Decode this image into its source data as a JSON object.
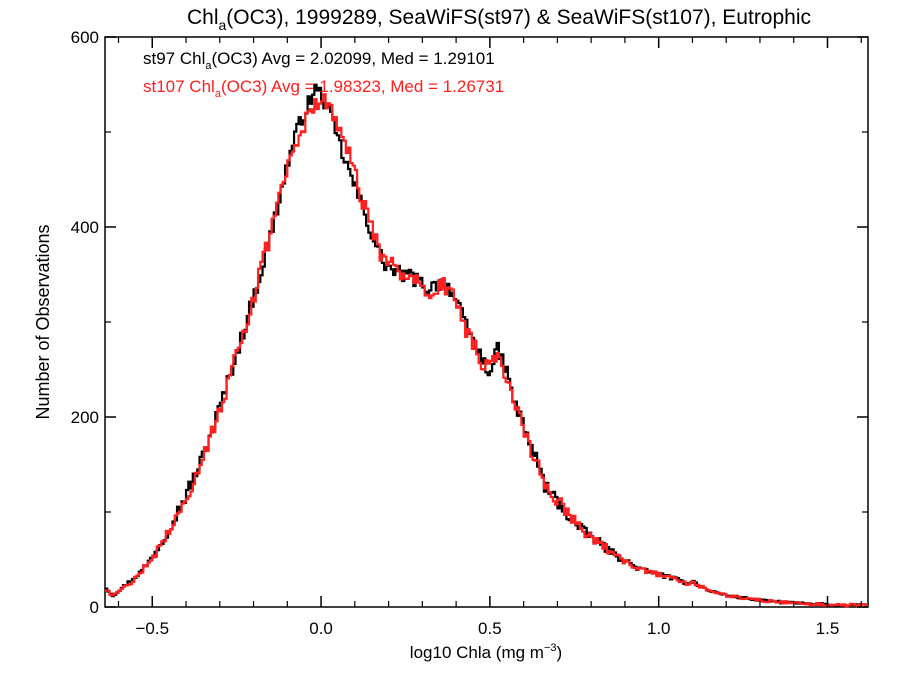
{
  "chart_data": {
    "type": "histogram",
    "title": {
      "prefix": "Chl",
      "subscript": "a",
      "suffix": "(OC3), 1999289, SeaWiFS(st97) & SeaWiFS(st107), Eutrophic"
    },
    "xlabel": {
      "main": "log10 Chla (mg m",
      "superscript": "−3",
      "end": ")"
    },
    "ylabel": "Number of Observations",
    "xlim": [
      -0.64,
      1.62
    ],
    "ylim": [
      0,
      600
    ],
    "xticks": [
      -0.5,
      0.0,
      0.5,
      1.0,
      1.5
    ],
    "xtick_labels": [
      "−0.5",
      "0.0",
      "0.5",
      "1.0",
      "1.5"
    ],
    "yticks": [
      0,
      200,
      400,
      600
    ],
    "ytick_labels": [
      "0",
      "200",
      "400",
      "600"
    ],
    "grid": false,
    "legend": [
      {
        "prefix": "st97 Chl",
        "subscript": "a",
        "suffix": "(OC3) Avg = 2.02099, Med = 1.29101",
        "color": "#000000"
      },
      {
        "prefix": "st107 Chl",
        "subscript": "a",
        "suffix": "(OC3) Avg = 1.98323, Med = 1.26731",
        "color": "#ff2020"
      }
    ],
    "series": [
      {
        "name": "st97",
        "color": "#000000",
        "bin_width": 0.02,
        "x": [
          -0.64,
          -0.62,
          -0.6,
          -0.58,
          -0.56,
          -0.54,
          -0.52,
          -0.5,
          -0.48,
          -0.46,
          -0.44,
          -0.42,
          -0.4,
          -0.38,
          -0.36,
          -0.34,
          -0.32,
          -0.3,
          -0.28,
          -0.26,
          -0.24,
          -0.22,
          -0.2,
          -0.18,
          -0.16,
          -0.14,
          -0.12,
          -0.1,
          -0.08,
          -0.06,
          -0.04,
          -0.02,
          0.0,
          0.02,
          0.04,
          0.06,
          0.08,
          0.1,
          0.12,
          0.14,
          0.16,
          0.18,
          0.2,
          0.22,
          0.24,
          0.26,
          0.28,
          0.3,
          0.32,
          0.34,
          0.36,
          0.38,
          0.4,
          0.42,
          0.44,
          0.46,
          0.48,
          0.5,
          0.52,
          0.54,
          0.56,
          0.58,
          0.6,
          0.62,
          0.64,
          0.66,
          0.68,
          0.7,
          0.72,
          0.74,
          0.76,
          0.78,
          0.8,
          0.82,
          0.84,
          0.86,
          0.88,
          0.9,
          0.92,
          0.94,
          0.96,
          0.98,
          1.0,
          1.02,
          1.04,
          1.06,
          1.08,
          1.1,
          1.12,
          1.14,
          1.16,
          1.18,
          1.2,
          1.22,
          1.24,
          1.26,
          1.28,
          1.3,
          1.32,
          1.34,
          1.36,
          1.38,
          1.4,
          1.42,
          1.44,
          1.46,
          1.48,
          1.5,
          1.52,
          1.54,
          1.56,
          1.58,
          1.6
        ],
        "counts": [
          20,
          12,
          18,
          24,
          30,
          36,
          44,
          55,
          66,
          78,
          92,
          106,
          120,
          136,
          152,
          172,
          192,
          214,
          236,
          260,
          282,
          306,
          330,
          354,
          380,
          410,
          440,
          470,
          495,
          515,
          530,
          545,
          538,
          520,
          500,
          478,
          458,
          440,
          420,
          400,
          380,
          364,
          356,
          352,
          350,
          348,
          344,
          338,
          336,
          340,
          342,
          335,
          320,
          300,
          285,
          272,
          255,
          250,
          270,
          255,
          228,
          205,
          188,
          168,
          150,
          128,
          118,
          110,
          100,
          92,
          84,
          78,
          74,
          68,
          62,
          57,
          52,
          48,
          44,
          40,
          38,
          36,
          34,
          32,
          30,
          28,
          25,
          27,
          22,
          18,
          16,
          14,
          12,
          11,
          10,
          9,
          8,
          7,
          6,
          6,
          5,
          5,
          4,
          4,
          3,
          3,
          3,
          2,
          2,
          2,
          2,
          2,
          2
        ],
        "wiggle": 8,
        "seed": 97
      },
      {
        "name": "st107",
        "color": "#ff2020",
        "bin_width": 0.02,
        "x": [
          -0.64,
          -0.62,
          -0.6,
          -0.58,
          -0.56,
          -0.54,
          -0.52,
          -0.5,
          -0.48,
          -0.46,
          -0.44,
          -0.42,
          -0.4,
          -0.38,
          -0.36,
          -0.34,
          -0.32,
          -0.3,
          -0.28,
          -0.26,
          -0.24,
          -0.22,
          -0.2,
          -0.18,
          -0.16,
          -0.14,
          -0.12,
          -0.1,
          -0.08,
          -0.06,
          -0.04,
          -0.02,
          0.0,
          0.02,
          0.04,
          0.06,
          0.08,
          0.1,
          0.12,
          0.14,
          0.16,
          0.18,
          0.2,
          0.22,
          0.24,
          0.26,
          0.28,
          0.3,
          0.32,
          0.34,
          0.36,
          0.38,
          0.4,
          0.42,
          0.44,
          0.46,
          0.48,
          0.5,
          0.52,
          0.54,
          0.56,
          0.58,
          0.6,
          0.62,
          0.64,
          0.66,
          0.68,
          0.7,
          0.72,
          0.74,
          0.76,
          0.78,
          0.8,
          0.82,
          0.84,
          0.86,
          0.88,
          0.9,
          0.92,
          0.94,
          0.96,
          0.98,
          1.0,
          1.02,
          1.04,
          1.06,
          1.08,
          1.1,
          1.12,
          1.14,
          1.16,
          1.18,
          1.2,
          1.22,
          1.24,
          1.26,
          1.28,
          1.3,
          1.32,
          1.34,
          1.36,
          1.38,
          1.4,
          1.42,
          1.44,
          1.46,
          1.48,
          1.5,
          1.52,
          1.54,
          1.56,
          1.58,
          1.6
        ],
        "counts": [
          18,
          12,
          17,
          22,
          28,
          36,
          44,
          52,
          64,
          78,
          90,
          104,
          118,
          134,
          150,
          172,
          190,
          212,
          234,
          258,
          280,
          305,
          330,
          356,
          384,
          412,
          440,
          462,
          482,
          502,
          518,
          530,
          534,
          528,
          515,
          498,
          476,
          452,
          428,
          404,
          384,
          368,
          362,
          356,
          352,
          346,
          342,
          338,
          334,
          336,
          338,
          330,
          316,
          296,
          282,
          270,
          254,
          252,
          268,
          250,
          224,
          202,
          184,
          166,
          148,
          128,
          118,
          110,
          100,
          92,
          84,
          78,
          74,
          68,
          62,
          57,
          52,
          48,
          44,
          40,
          38,
          36,
          34,
          32,
          30,
          28,
          25,
          26,
          22,
          18,
          16,
          14,
          12,
          11,
          10,
          9,
          8,
          7,
          6,
          6,
          5,
          5,
          4,
          4,
          3,
          3,
          3,
          2,
          2,
          2,
          2,
          2,
          2
        ],
        "wiggle": 9,
        "seed": 107
      }
    ]
  }
}
